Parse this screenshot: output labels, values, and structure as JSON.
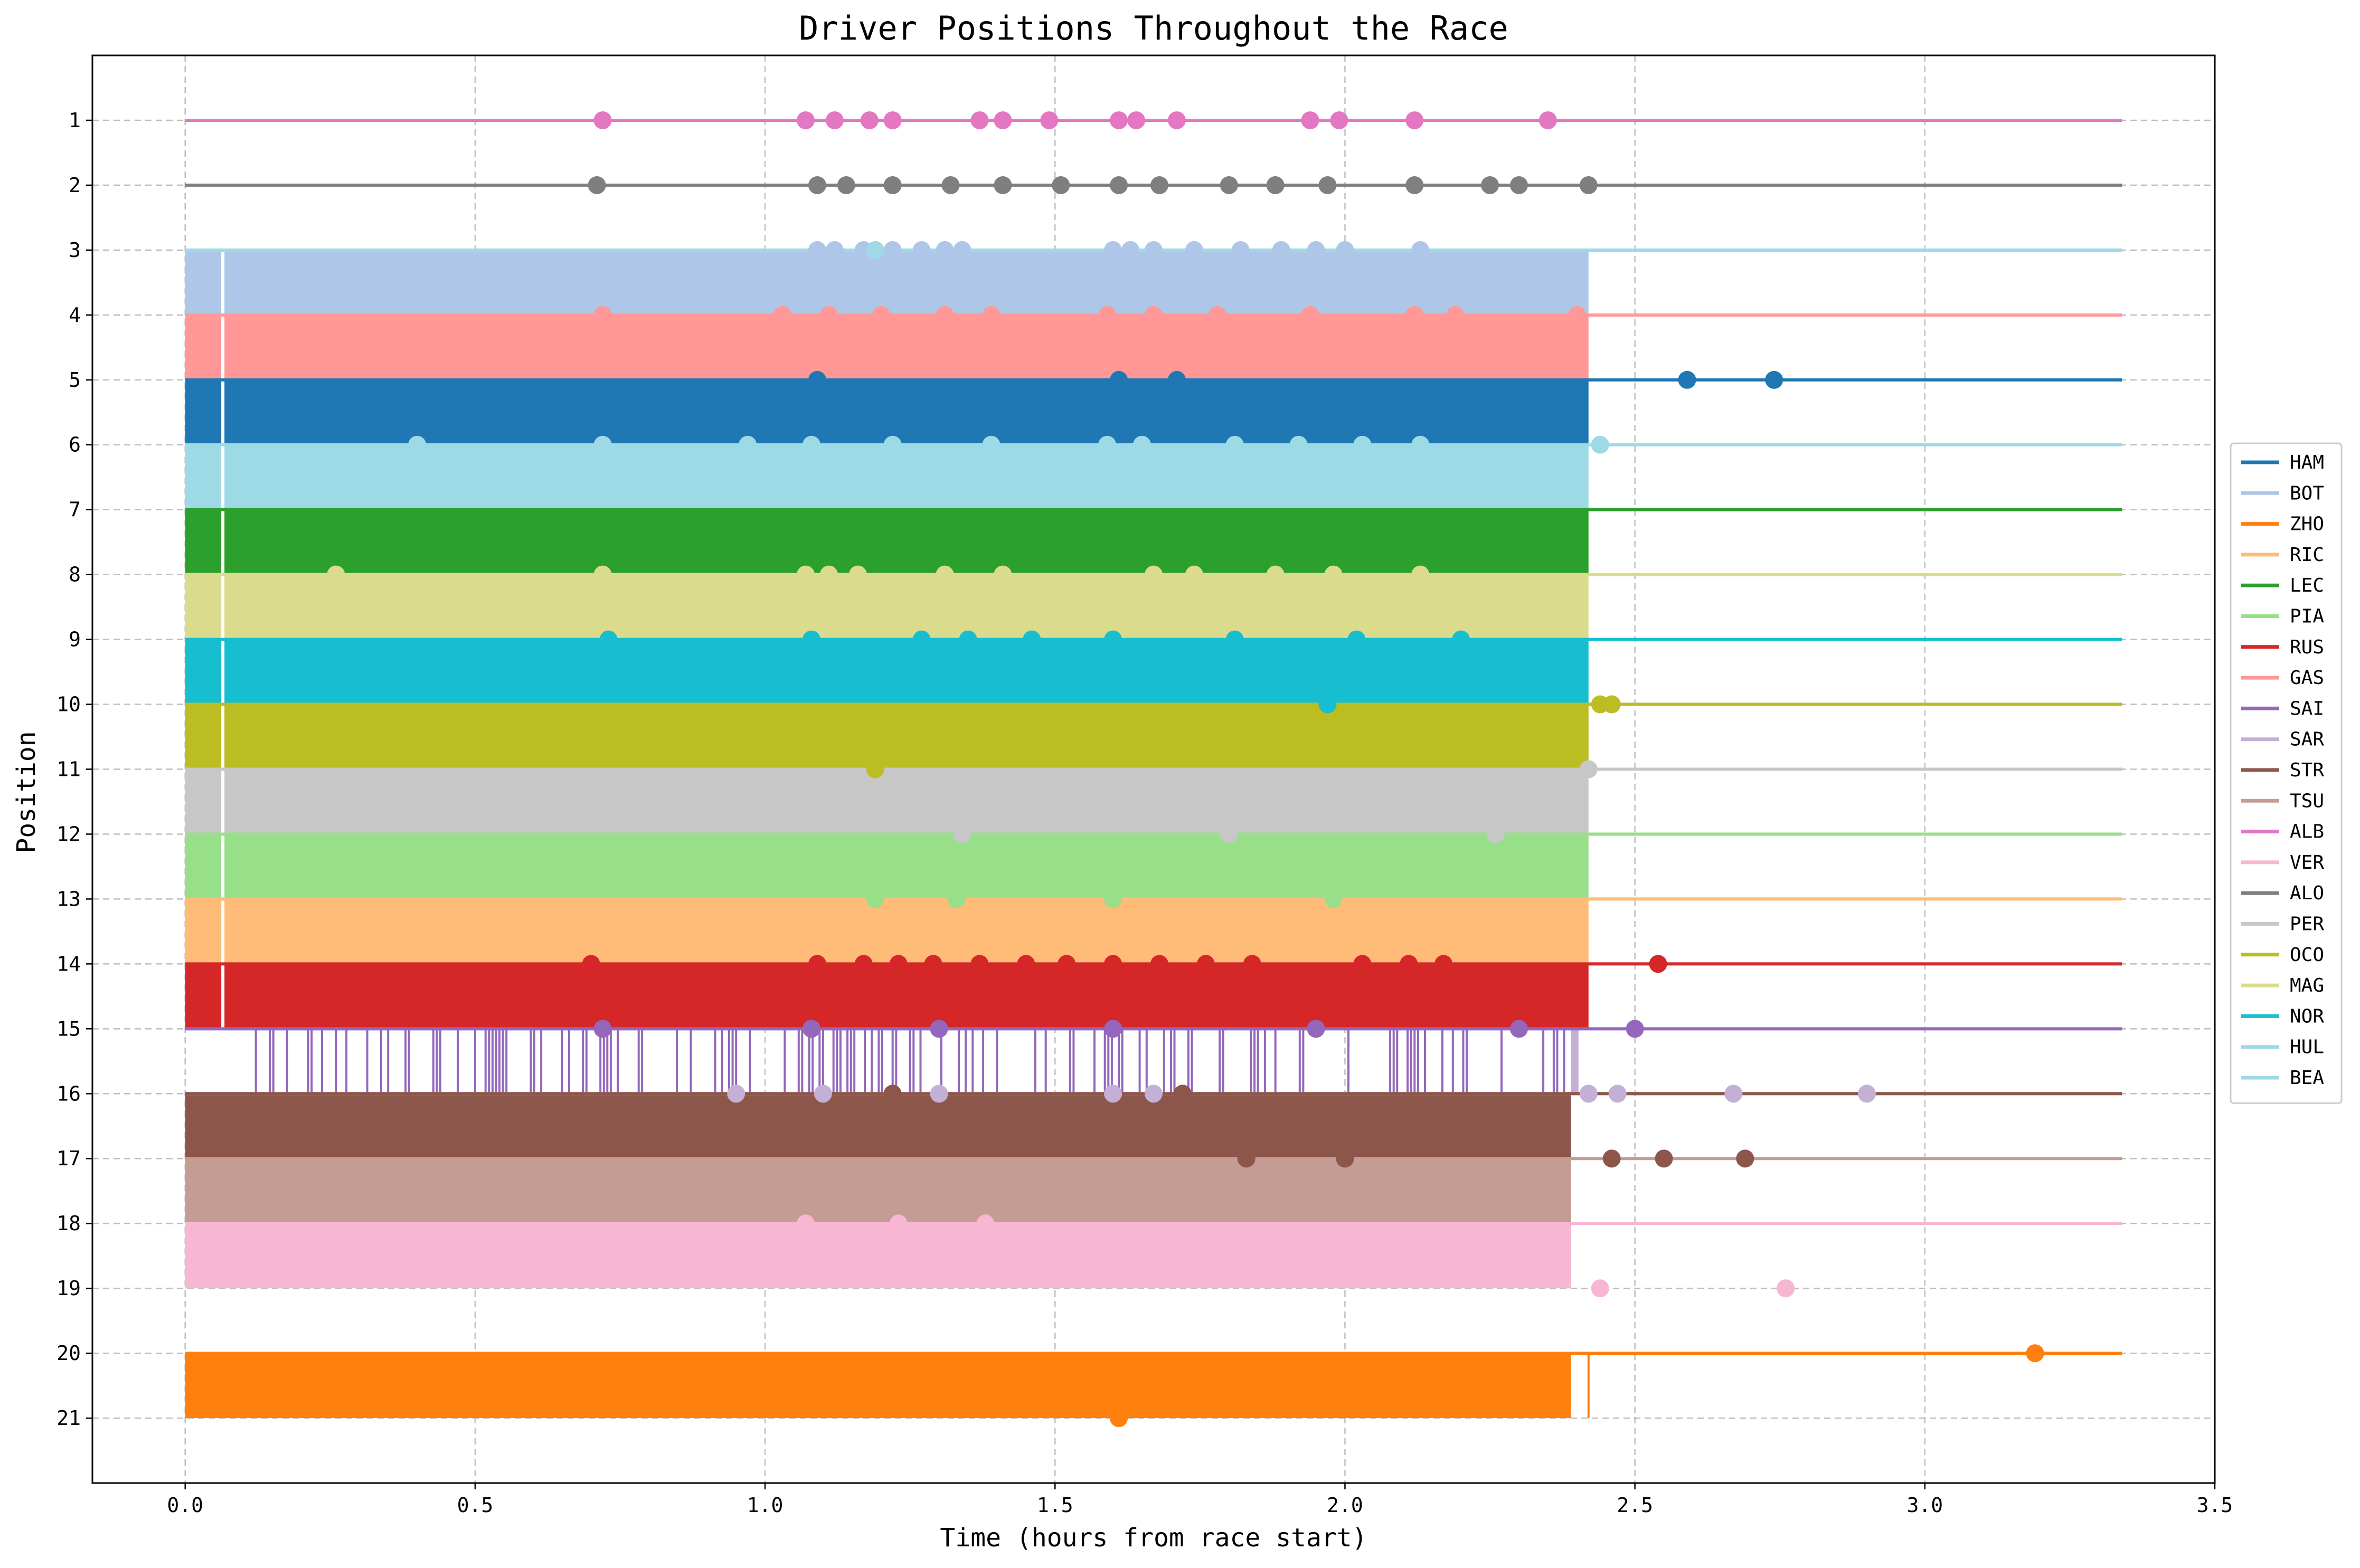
{
  "chart_data": {
    "type": "line",
    "title": "Driver Positions Throughout the Race",
    "xlabel": "Time (hours from race start)",
    "ylabel": "Position",
    "xlim": [
      -0.16,
      3.5
    ],
    "ylim": [
      22,
      0
    ],
    "x_ticks": [
      0.0,
      0.5,
      1.0,
      1.5,
      2.0,
      2.5,
      3.0,
      3.5
    ],
    "x_tick_labels": [
      "0.0",
      "0.5",
      "1.0",
      "1.5",
      "2.0",
      "2.5",
      "3.0",
      "3.5"
    ],
    "y_ticks": [
      1,
      2,
      3,
      4,
      5,
      6,
      7,
      8,
      9,
      10,
      11,
      12,
      13,
      14,
      15,
      16,
      17,
      18,
      19,
      20,
      21
    ],
    "y_tick_labels": [
      "1",
      "2",
      "3",
      "4",
      "5",
      "6",
      "7",
      "8",
      "9",
      "10",
      "11",
      "12",
      "13",
      "14",
      "15",
      "16",
      "17",
      "18",
      "19",
      "20",
      "21"
    ],
    "grid": true,
    "legend_position": "right",
    "race_end": 3.34,
    "dense_end": 2.42,
    "series": [
      {
        "name": "HAM",
        "color": "#1f77b4",
        "position": 5,
        "band": [
          5,
          6
        ],
        "markers": [
          [
            1.09,
            5
          ],
          [
            1.61,
            5
          ],
          [
            1.71,
            5
          ],
          [
            2.59,
            5
          ],
          [
            2.74,
            5
          ]
        ]
      },
      {
        "name": "BOT",
        "color": "#aec7e8",
        "position": 3,
        "band": [
          3,
          4
        ],
        "markers": [
          [
            1.09,
            3
          ],
          [
            1.12,
            3
          ],
          [
            1.17,
            3
          ],
          [
            1.22,
            3
          ],
          [
            1.27,
            3
          ],
          [
            1.31,
            3
          ],
          [
            1.34,
            3
          ],
          [
            1.6,
            3
          ],
          [
            1.63,
            3
          ],
          [
            1.67,
            3
          ],
          [
            1.74,
            3
          ],
          [
            1.82,
            3
          ],
          [
            1.89,
            3
          ],
          [
            1.95,
            3
          ],
          [
            2.0,
            3
          ],
          [
            2.13,
            3
          ]
        ]
      },
      {
        "name": "ZHO",
        "color": "#ff7f0e",
        "position": 20,
        "band": [
          20,
          21
        ],
        "markers": [
          [
            1.61,
            21
          ],
          [
            3.19,
            20
          ]
        ]
      },
      {
        "name": "RIC",
        "color": "#ffbb78",
        "position": 13,
        "band": [
          13,
          14
        ],
        "markers": []
      },
      {
        "name": "LEC",
        "color": "#2ca02c",
        "position": 7,
        "band": [
          7,
          8
        ],
        "markers": []
      },
      {
        "name": "PIA",
        "color": "#98df8a",
        "position": 12,
        "band": [
          12,
          13
        ],
        "markers": [
          [
            1.19,
            13
          ],
          [
            1.33,
            13
          ],
          [
            1.6,
            13
          ],
          [
            1.98,
            13
          ]
        ]
      },
      {
        "name": "RUS",
        "color": "#d62728",
        "position": 14,
        "band": [
          14,
          15
        ],
        "markers": [
          [
            0.7,
            14
          ],
          [
            1.09,
            14
          ],
          [
            1.17,
            14
          ],
          [
            1.23,
            14
          ],
          [
            1.29,
            14
          ],
          [
            1.37,
            14
          ],
          [
            1.45,
            14
          ],
          [
            1.52,
            14
          ],
          [
            1.6,
            14
          ],
          [
            1.68,
            14
          ],
          [
            1.76,
            14
          ],
          [
            1.84,
            14
          ],
          [
            2.03,
            14
          ],
          [
            2.11,
            14
          ],
          [
            2.17,
            14
          ],
          [
            2.54,
            14
          ]
        ]
      },
      {
        "name": "GAS",
        "color": "#ff9896",
        "position": 4,
        "band": [
          4,
          5
        ],
        "markers": [
          [
            0.72,
            4
          ],
          [
            1.03,
            4
          ],
          [
            1.11,
            4
          ],
          [
            1.2,
            4
          ],
          [
            1.31,
            4
          ],
          [
            1.39,
            4
          ],
          [
            1.59,
            4
          ],
          [
            1.67,
            4
          ],
          [
            1.78,
            4
          ],
          [
            1.94,
            4
          ],
          [
            2.12,
            4
          ],
          [
            2.19,
            4
          ],
          [
            2.4,
            4
          ]
        ]
      },
      {
        "name": "SAI",
        "color": "#9467bd",
        "position": 15,
        "band": null,
        "markers": [
          [
            0.72,
            15
          ],
          [
            1.08,
            15
          ],
          [
            1.3,
            15
          ],
          [
            1.6,
            15
          ],
          [
            1.95,
            15
          ],
          [
            2.3,
            15
          ],
          [
            2.5,
            15
          ]
        ]
      },
      {
        "name": "SAR",
        "color": "#c5b0d5",
        "position": 16,
        "band": null,
        "markers": [
          [
            0.95,
            16
          ],
          [
            1.1,
            16
          ],
          [
            1.3,
            16
          ],
          [
            1.6,
            16
          ],
          [
            1.67,
            16
          ],
          [
            2.42,
            16
          ],
          [
            2.47,
            16
          ],
          [
            2.67,
            16
          ],
          [
            2.9,
            16
          ]
        ]
      },
      {
        "name": "STR",
        "color": "#8c564b",
        "position": 16,
        "band": [
          16,
          17
        ],
        "markers": [
          [
            1.22,
            16
          ],
          [
            1.72,
            16
          ],
          [
            1.83,
            17
          ],
          [
            2.0,
            17
          ],
          [
            2.46,
            17
          ],
          [
            2.55,
            17
          ],
          [
            2.69,
            17
          ]
        ]
      },
      {
        "name": "TSU",
        "color": "#c49c94",
        "position": 17,
        "band": [
          17,
          18
        ],
        "markers": []
      },
      {
        "name": "ALB",
        "color": "#e377c2",
        "position": 1,
        "band": null,
        "markers": [
          [
            0.72,
            1
          ],
          [
            1.07,
            1
          ],
          [
            1.12,
            1
          ],
          [
            1.18,
            1
          ],
          [
            1.22,
            1
          ],
          [
            1.37,
            1
          ],
          [
            1.41,
            1
          ],
          [
            1.49,
            1
          ],
          [
            1.61,
            1
          ],
          [
            1.64,
            1
          ],
          [
            1.71,
            1
          ],
          [
            1.94,
            1
          ],
          [
            1.99,
            1
          ],
          [
            2.12,
            1
          ],
          [
            2.35,
            1
          ]
        ]
      },
      {
        "name": "VER",
        "color": "#f7b6d2",
        "position": 18,
        "band": [
          18,
          19
        ],
        "markers": [
          [
            1.07,
            18
          ],
          [
            1.23,
            18
          ],
          [
            1.38,
            18
          ],
          [
            2.44,
            19
          ],
          [
            2.76,
            19
          ]
        ]
      },
      {
        "name": "ALO",
        "color": "#7f7f7f",
        "position": 2,
        "band": null,
        "markers": [
          [
            0.71,
            2
          ],
          [
            1.09,
            2
          ],
          [
            1.14,
            2
          ],
          [
            1.22,
            2
          ],
          [
            1.32,
            2
          ],
          [
            1.41,
            2
          ],
          [
            1.51,
            2
          ],
          [
            1.61,
            2
          ],
          [
            1.68,
            2
          ],
          [
            1.8,
            2
          ],
          [
            1.88,
            2
          ],
          [
            1.97,
            2
          ],
          [
            2.12,
            2
          ],
          [
            2.25,
            2
          ],
          [
            2.3,
            2
          ],
          [
            2.42,
            2
          ]
        ]
      },
      {
        "name": "PER",
        "color": "#c7c7c7",
        "position": 11,
        "band": [
          11,
          12
        ],
        "markers": [
          [
            1.34,
            12
          ],
          [
            1.8,
            12
          ],
          [
            2.26,
            12
          ],
          [
            2.42,
            11
          ]
        ]
      },
      {
        "name": "OCO",
        "color": "#bcbd22",
        "position": 10,
        "band": [
          10,
          11
        ],
        "markers": [
          [
            1.19,
            11
          ],
          [
            2.44,
            10
          ],
          [
            2.46,
            10
          ]
        ]
      },
      {
        "name": "MAG",
        "color": "#dbdb8d",
        "position": 8,
        "band": [
          8,
          9
        ],
        "markers": [
          [
            0.26,
            8
          ],
          [
            0.72,
            8
          ],
          [
            1.07,
            8
          ],
          [
            1.11,
            8
          ],
          [
            1.16,
            8
          ],
          [
            1.31,
            8
          ],
          [
            1.41,
            8
          ],
          [
            1.67,
            8
          ],
          [
            1.74,
            8
          ],
          [
            1.88,
            8
          ],
          [
            1.98,
            8
          ],
          [
            2.13,
            8
          ]
        ]
      },
      {
        "name": "NOR",
        "color": "#17becf",
        "position": 9,
        "band": [
          9,
          10
        ],
        "markers": [
          [
            0.73,
            9
          ],
          [
            1.08,
            9
          ],
          [
            1.27,
            9
          ],
          [
            1.35,
            9
          ],
          [
            1.46,
            9
          ],
          [
            1.6,
            9
          ],
          [
            1.81,
            9
          ],
          [
            1.97,
            10
          ],
          [
            2.02,
            9
          ],
          [
            2.2,
            9
          ]
        ]
      },
      {
        "name": "HUL",
        "color": "#9edae5",
        "position": 6,
        "band": [
          6,
          7
        ],
        "markers": [
          [
            0.4,
            6
          ],
          [
            0.72,
            6
          ],
          [
            0.97,
            6
          ],
          [
            1.08,
            6
          ],
          [
            1.22,
            6
          ],
          [
            1.39,
            6
          ],
          [
            1.59,
            6
          ],
          [
            1.65,
            6
          ],
          [
            1.81,
            6
          ],
          [
            1.92,
            6
          ],
          [
            2.03,
            6
          ],
          [
            2.13,
            6
          ],
          [
            2.44,
            6
          ]
        ]
      },
      {
        "name": "BEA",
        "color": "#9edae5",
        "position": 3,
        "band": null,
        "markers": [
          [
            1.19,
            3
          ]
        ]
      }
    ]
  }
}
